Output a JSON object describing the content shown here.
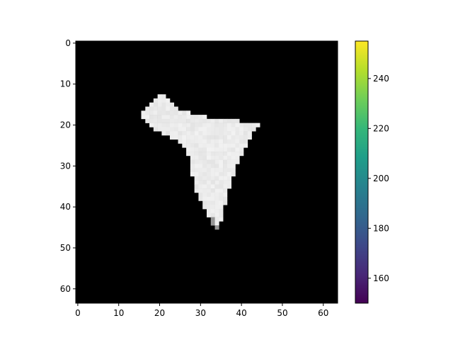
{
  "chart_data": [
    {
      "type": "heatmap",
      "title": "",
      "xlabel": "",
      "ylabel": "",
      "grid": false,
      "image_shape": [
        64,
        64
      ],
      "xlim": [
        -0.5,
        63.5
      ],
      "ylim": [
        63.5,
        -0.5
      ],
      "x_ticks": [
        0,
        10,
        20,
        30,
        40,
        50,
        60
      ],
      "y_ticks": [
        0,
        10,
        20,
        30,
        40,
        50,
        60
      ],
      "background_value": 0,
      "foreground_value_range": [
        228,
        242
      ],
      "region_row_extents": [
        {
          "row": 13,
          "x0": 20,
          "x1": 21
        },
        {
          "row": 14,
          "x0": 19,
          "x1": 22
        },
        {
          "row": 15,
          "x0": 18,
          "x1": 23
        },
        {
          "row": 16,
          "x0": 17,
          "x1": 24
        },
        {
          "row": 17,
          "x0": 16,
          "x1": 27
        },
        {
          "row": 18,
          "x0": 16,
          "x1": 31
        },
        {
          "row": 19,
          "x0": 17,
          "x1": 39
        },
        {
          "row": 20,
          "x0": 18,
          "x1": 44
        },
        {
          "row": 21,
          "x0": 19,
          "x1": 43
        },
        {
          "row": 22,
          "x0": 21,
          "x1": 42
        },
        {
          "row": 23,
          "x0": 23,
          "x1": 42
        },
        {
          "row": 24,
          "x0": 25,
          "x1": 41
        },
        {
          "row": 25,
          "x0": 26,
          "x1": 41
        },
        {
          "row": 26,
          "x0": 27,
          "x1": 40
        },
        {
          "row": 27,
          "x0": 27,
          "x1": 40
        },
        {
          "row": 28,
          "x0": 28,
          "x1": 39
        },
        {
          "row": 29,
          "x0": 28,
          "x1": 39
        },
        {
          "row": 30,
          "x0": 28,
          "x1": 38
        },
        {
          "row": 31,
          "x0": 28,
          "x1": 38
        },
        {
          "row": 32,
          "x0": 28,
          "x1": 38
        },
        {
          "row": 33,
          "x0": 29,
          "x1": 37
        },
        {
          "row": 34,
          "x0": 29,
          "x1": 37
        },
        {
          "row": 35,
          "x0": 29,
          "x1": 37
        },
        {
          "row": 36,
          "x0": 29,
          "x1": 36
        },
        {
          "row": 37,
          "x0": 30,
          "x1": 36
        },
        {
          "row": 38,
          "x0": 30,
          "x1": 36
        },
        {
          "row": 39,
          "x0": 31,
          "x1": 36
        },
        {
          "row": 40,
          "x0": 31,
          "x1": 35
        },
        {
          "row": 41,
          "x0": 32,
          "x1": 35
        },
        {
          "row": 42,
          "x0": 32,
          "x1": 35
        },
        {
          "row": 43,
          "x0": 33,
          "x1": 35
        },
        {
          "row": 44,
          "x0": 33,
          "x1": 34
        },
        {
          "row": 45,
          "x0": 34,
          "x1": 34
        }
      ],
      "colorbar": {
        "colormap": "viridis",
        "range": [
          150,
          255
        ],
        "ticks": [
          160,
          180,
          200,
          220,
          240
        ],
        "tick_labels": [
          "160",
          "180",
          "200",
          "220",
          "240"
        ]
      }
    }
  ]
}
